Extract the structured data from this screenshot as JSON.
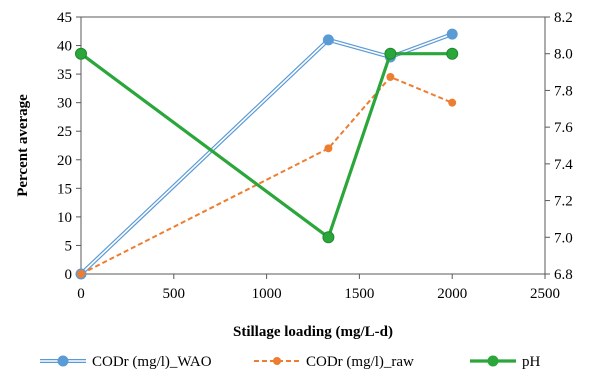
{
  "chart_data": {
    "type": "line",
    "title": "",
    "xlabel": "Stillage loading (mg/L-d)",
    "ylabel": "Percent average",
    "xlim": [
      0,
      2500
    ],
    "xticks": [
      0,
      500,
      1000,
      1500,
      2000,
      2500
    ],
    "ylim": [
      0,
      45
    ],
    "yticks": [
      0,
      5,
      10,
      15,
      20,
      25,
      30,
      35,
      40,
      45
    ],
    "y2lim": [
      6.8,
      8.2
    ],
    "y2ticks": [
      "6.8",
      "7.0",
      "7.2",
      "7.4",
      "7.6",
      "7.8",
      "8.0",
      "8.2"
    ],
    "grid": false,
    "legend_position": "bottom",
    "series": [
      {
        "name": "CODr (mg/l)_WAO",
        "axis": "left",
        "color": "#5B9BD5",
        "style": "double",
        "x": [
          0,
          1333,
          1667,
          2000
        ],
        "y": [
          0,
          41,
          38,
          42
        ]
      },
      {
        "name": "CODr (mg/l)_raw",
        "axis": "left",
        "color": "#ED7D31",
        "style": "dashed",
        "x": [
          0,
          1333,
          1667,
          2000
        ],
        "y": [
          0,
          22,
          34.5,
          30
        ]
      },
      {
        "name": "pH",
        "axis": "right",
        "color": "#2AA63A",
        "style": "thick",
        "x": [
          0,
          1333,
          1667,
          2000
        ],
        "y": [
          8.0,
          7.0,
          8.0,
          8.0
        ]
      }
    ]
  }
}
